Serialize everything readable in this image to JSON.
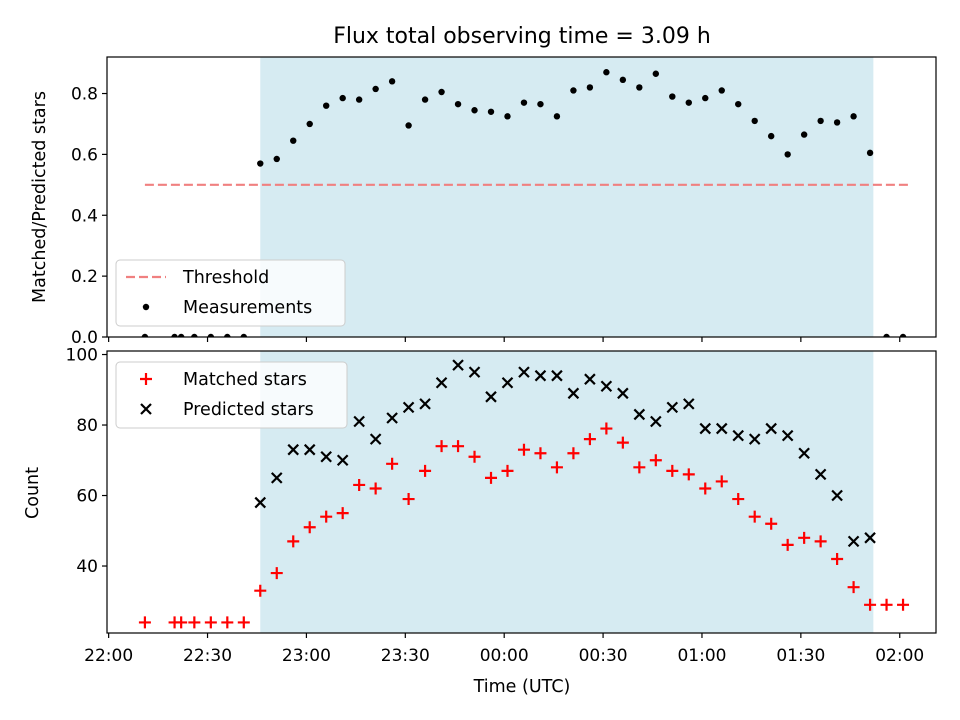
{
  "chart_data": {
    "title": "Flux total observing time = 3.09 h",
    "xlabel": "Time (UTC)",
    "x_ticks": [
      "22:00",
      "22:30",
      "23:00",
      "23:30",
      "00:00",
      "00:30",
      "01:00",
      "01:30",
      "02:00"
    ],
    "x_tick_minutes": [
      0,
      30,
      60,
      90,
      120,
      150,
      180,
      210,
      240
    ],
    "xlim_minutes": [
      -0.5,
      251
    ],
    "shaded_span": {
      "start": "22:46",
      "end": "01:52",
      "color": "#add8e6"
    },
    "panels": [
      {
        "type": "scatter",
        "ylabel": "Matched/Predicted stars",
        "ylim": [
          0,
          0.92
        ],
        "y_ticks": [
          0.0,
          0.2,
          0.4,
          0.6,
          0.8
        ],
        "y_tick_labels": [
          "0.0",
          "0.2",
          "0.4",
          "0.6",
          "0.8"
        ],
        "legend": {
          "position": "lower left",
          "entries": [
            "Threshold",
            "Measurements"
          ]
        },
        "series": [
          {
            "name": "Threshold",
            "style": "dashed-line",
            "color": "#f08080",
            "x": [
              11,
              243
            ],
            "y": [
              0.5,
              0.5
            ]
          },
          {
            "name": "Measurements",
            "style": "dot",
            "color": "#000000",
            "x": [
              11,
              20,
              22,
              26,
              31,
              36,
              41,
              46,
              51,
              56,
              61,
              66,
              71,
              76,
              81,
              86,
              91,
              96,
              101,
              106,
              111,
              116,
              121,
              126,
              131,
              136,
              141,
              146,
              151,
              156,
              161,
              166,
              171,
              176,
              181,
              186,
              191,
              196,
              201,
              206,
              211,
              216,
              221,
              226,
              231,
              236,
              241
            ],
            "y": [
              0,
              0,
              0,
              0,
              0,
              0,
              0,
              0.57,
              0.585,
              0.645,
              0.7,
              0.76,
              0.785,
              0.78,
              0.815,
              0.84,
              0.695,
              0.78,
              0.805,
              0.765,
              0.745,
              0.74,
              0.725,
              0.77,
              0.765,
              0.725,
              0.81,
              0.82,
              0.87,
              0.845,
              0.82,
              0.865,
              0.79,
              0.77,
              0.785,
              0.81,
              0.765,
              0.71,
              0.66,
              0.6,
              0.665,
              0.71,
              0.705,
              0.725,
              0.605,
              0,
              0
            ]
          }
        ]
      },
      {
        "type": "scatter",
        "ylabel": "Count",
        "ylim": [
          21,
          101
        ],
        "y_ticks": [
          40,
          60,
          80,
          100
        ],
        "y_tick_labels": [
          "40",
          "60",
          "80",
          "100"
        ],
        "legend": {
          "position": "upper left",
          "entries": [
            "Matched stars",
            "Predicted stars"
          ]
        },
        "series": [
          {
            "name": "Matched stars",
            "marker": "plus",
            "color": "#ff0000",
            "x": [
              11,
              20,
              22,
              26,
              31,
              36,
              41,
              46,
              51,
              56,
              61,
              66,
              71,
              76,
              81,
              86,
              91,
              96,
              101,
              106,
              111,
              116,
              121,
              126,
              131,
              136,
              141,
              146,
              151,
              156,
              161,
              166,
              171,
              176,
              181,
              186,
              191,
              196,
              201,
              206,
              211,
              216,
              221,
              226,
              231,
              236,
              241
            ],
            "y": [
              24,
              24,
              24,
              24,
              24,
              24,
              24,
              33,
              38,
              47,
              51,
              54,
              55,
              63,
              62,
              69,
              59,
              67,
              74,
              74,
              71,
              65,
              67,
              73,
              72,
              68,
              72,
              76,
              79,
              75,
              68,
              70,
              67,
              66,
              62,
              64,
              59,
              54,
              52,
              46,
              48,
              47,
              42,
              34,
              29,
              29,
              29
            ]
          },
          {
            "name": "Predicted stars",
            "marker": "x",
            "color": "#000000",
            "x": [
              46,
              51,
              56,
              61,
              66,
              71,
              76,
              81,
              86,
              91,
              96,
              101,
              106,
              111,
              116,
              121,
              126,
              131,
              136,
              141,
              146,
              151,
              156,
              161,
              166,
              171,
              176,
              181,
              186,
              191,
              196,
              201,
              206,
              211,
              216,
              221,
              226,
              231
            ],
            "y": [
              58,
              65,
              73,
              73,
              71,
              70,
              81,
              76,
              82,
              85,
              86,
              92,
              97,
              95,
              88,
              92,
              95,
              94,
              94,
              89,
              93,
              91,
              89,
              83,
              81,
              85,
              86,
              79,
              79,
              77,
              76,
              79,
              77,
              72,
              66,
              60,
              47,
              48
            ]
          }
        ]
      }
    ]
  }
}
